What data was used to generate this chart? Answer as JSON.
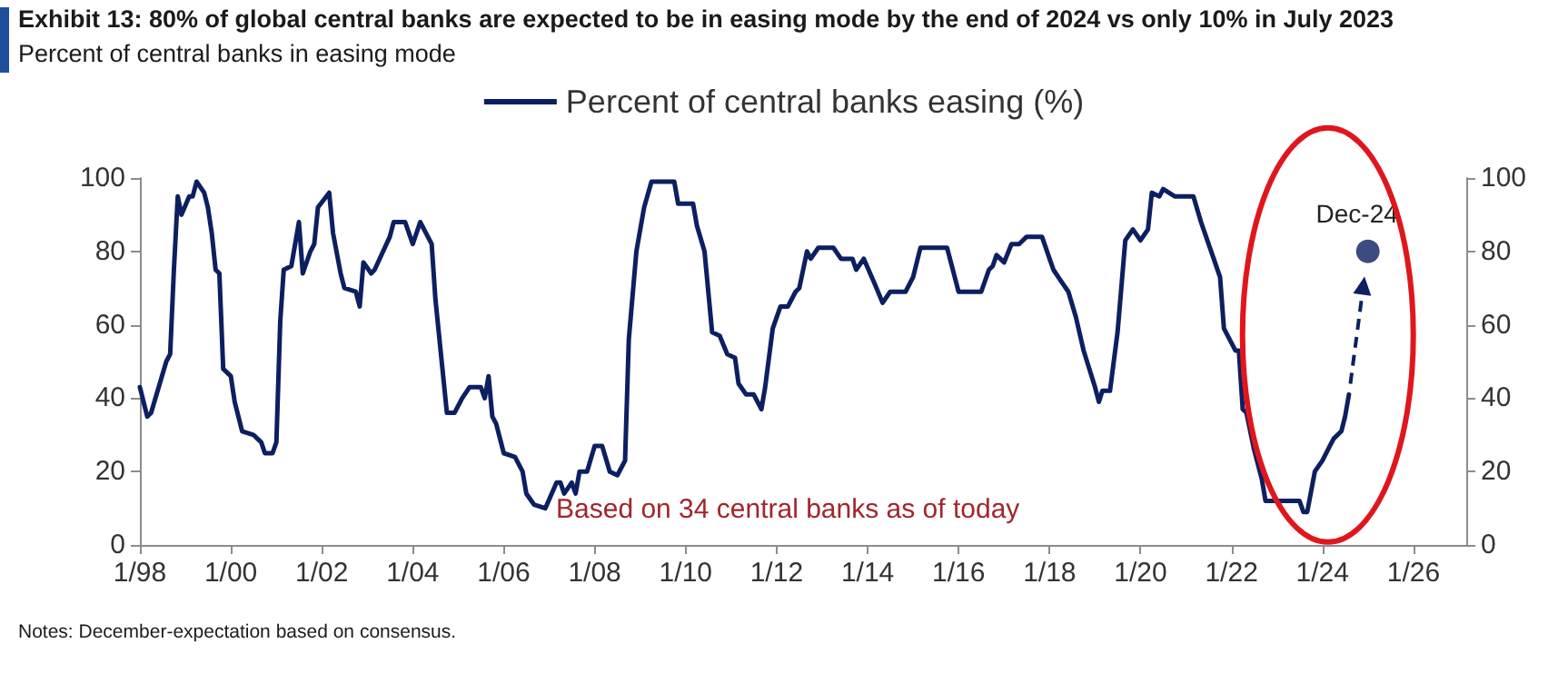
{
  "chart_data": {
    "type": "line",
    "title": "Exhibit 13: 80% of global central banks are expected to be in easing mode by the end of 2024 vs only 10% in July 2023",
    "subtitle": "Percent of central banks in easing mode",
    "xlim": [
      "1998-01",
      "2027-03"
    ],
    "xticks": [
      {
        "value": "1998-01",
        "label": "1/98"
      },
      {
        "value": "2000-01",
        "label": "1/00"
      },
      {
        "value": "2002-01",
        "label": "1/02"
      },
      {
        "value": "2004-01",
        "label": "1/04"
      },
      {
        "value": "2006-01",
        "label": "1/06"
      },
      {
        "value": "2008-01",
        "label": "1/08"
      },
      {
        "value": "2010-01",
        "label": "1/10"
      },
      {
        "value": "2012-01",
        "label": "1/12"
      },
      {
        "value": "2014-01",
        "label": "1/14"
      },
      {
        "value": "2016-01",
        "label": "1/16"
      },
      {
        "value": "2018-01",
        "label": "1/18"
      },
      {
        "value": "2020-01",
        "label": "1/20"
      },
      {
        "value": "2022-01",
        "label": "1/22"
      },
      {
        "value": "2024-01",
        "label": "1/24"
      },
      {
        "value": "2026-01",
        "label": "1/26"
      }
    ],
    "ylim": [
      0,
      100
    ],
    "yticks": [
      0,
      20,
      40,
      60,
      80,
      100
    ],
    "y2lim": [
      0,
      100
    ],
    "y2ticks": [
      0,
      20,
      40,
      60,
      80,
      100
    ],
    "grid": false,
    "legend": "top",
    "line_style": "solid",
    "series": [
      {
        "name": "Percent of central banks easing (%)",
        "color": "#0c1f60",
        "marker": "none",
        "x": [
          "1998-01",
          "1998-03",
          "1998-04",
          "1998-06",
          "1998-08",
          "1998-09",
          "1998-10",
          "1998-11",
          "1998-12",
          "1999-02",
          "1999-03",
          "1999-04",
          "1999-06",
          "1999-07",
          "1999-08",
          "1999-09",
          "1999-10",
          "1999-11",
          "2000-01",
          "2000-02",
          "2000-04",
          "2000-07",
          "2000-08",
          "2000-09",
          "2000-10",
          "2000-12",
          "2001-01",
          "2001-02",
          "2001-03",
          "2001-05",
          "2001-07",
          "2001-08",
          "2001-10",
          "2001-11",
          "2001-12",
          "2002-03",
          "2002-04",
          "2002-06",
          "2002-07",
          "2002-10",
          "2002-11",
          "2002-12",
          "2003-02",
          "2003-03",
          "2003-07",
          "2003-08",
          "2003-11",
          "2004-01",
          "2004-03",
          "2004-06",
          "2004-07",
          "2004-10",
          "2004-12",
          "2005-02",
          "2005-04",
          "2005-07",
          "2005-08",
          "2005-09",
          "2005-10",
          "2005-11",
          "2006-01",
          "2006-04",
          "2006-06",
          "2006-07",
          "2006-09",
          "2006-12",
          "2007-03",
          "2007-04",
          "2007-05",
          "2007-07",
          "2007-08",
          "2007-09",
          "2007-11",
          "2008-01",
          "2008-03",
          "2008-05",
          "2008-07",
          "2008-09",
          "2008-10",
          "2008-12",
          "2009-02",
          "2009-04",
          "2009-10",
          "2009-11",
          "2010-03",
          "2010-04",
          "2010-06",
          "2010-08",
          "2010-10",
          "2010-12",
          "2011-02",
          "2011-03",
          "2011-05",
          "2011-07",
          "2011-09",
          "2011-10",
          "2011-12",
          "2012-02",
          "2012-04",
          "2012-06",
          "2012-07",
          "2012-09",
          "2012-10",
          "2012-12",
          "2013-04",
          "2013-06",
          "2013-09",
          "2013-10",
          "2013-12",
          "2014-03",
          "2014-05",
          "2014-07",
          "2014-11",
          "2015-01",
          "2015-03",
          "2015-10",
          "2016-01",
          "2016-07",
          "2016-09",
          "2016-10",
          "2016-11",
          "2017-01",
          "2017-03",
          "2017-05",
          "2017-07",
          "2017-11",
          "2018-01",
          "2018-02",
          "2018-04",
          "2018-06",
          "2018-08",
          "2018-10",
          "2019-01",
          "2019-02",
          "2019-03",
          "2019-05",
          "2019-07",
          "2019-09",
          "2019-11",
          "2020-01",
          "2020-03",
          "2020-04",
          "2020-06",
          "2020-07",
          "2020-10",
          "2021-03",
          "2021-05",
          "2021-08",
          "2021-10",
          "2021-11",
          "2022-02",
          "2022-03",
          "2022-04",
          "2022-05",
          "2022-07",
          "2022-09",
          "2022-10",
          "2023-07",
          "2023-08",
          "2023-09",
          "2023-11",
          "2024-01",
          "2024-03",
          "2024-04",
          "2024-06",
          "2024-07",
          "2024-08"
        ],
        "values": [
          43,
          35,
          36,
          43,
          50,
          52,
          75,
          95,
          90,
          95,
          95,
          99,
          96,
          92,
          85,
          75,
          74,
          48,
          46,
          39,
          31,
          30,
          29,
          28,
          25,
          25,
          28,
          61,
          75,
          76,
          88,
          74,
          80,
          82,
          92,
          96,
          85,
          74,
          70,
          69,
          65,
          77,
          74,
          75,
          84,
          88,
          88,
          82,
          88,
          82,
          67,
          36,
          36,
          40,
          43,
          43,
          40,
          46,
          35,
          33,
          25,
          24,
          20,
          14,
          11,
          10,
          17,
          17,
          14,
          17,
          14,
          20,
          20,
          27,
          27,
          20,
          19,
          23,
          56,
          80,
          92,
          99,
          99,
          93,
          93,
          87,
          80,
          58,
          57,
          52,
          51,
          44,
          41,
          41,
          37,
          43,
          59,
          65,
          65,
          69,
          70,
          80,
          78,
          81,
          81,
          78,
          78,
          75,
          78,
          71,
          66,
          69,
          69,
          73,
          81,
          81,
          69,
          69,
          75,
          76,
          79,
          77,
          82,
          82,
          84,
          84,
          78,
          75,
          72,
          69,
          62,
          53,
          43,
          39,
          42,
          42,
          58,
          83,
          86,
          83,
          86,
          96,
          95,
          97,
          95,
          95,
          88,
          79,
          73,
          59,
          53,
          53,
          37,
          36,
          26,
          18,
          12,
          12,
          9,
          9,
          20,
          23,
          27,
          29,
          31,
          35,
          41
        ]
      },
      {
        "type": "scatter",
        "color": "#0c1f60",
        "marker": "circle",
        "x": [
          "2024-12-31"
        ],
        "values": [
          80
        ]
      }
    ],
    "annotations": [
      {
        "text": "Dec-24",
        "x": "2024-12-31",
        "y": 80
      },
      "Based on 34 central banks as of today",
      "Notes: December-expectation based on consensus."
    ]
  }
}
